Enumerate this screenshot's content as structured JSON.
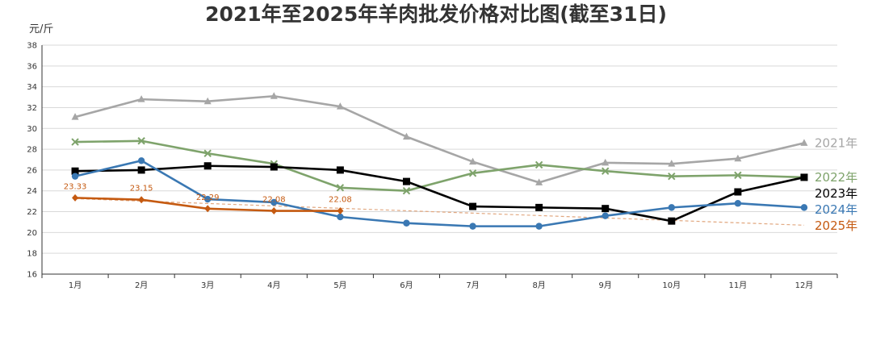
{
  "chart_data": {
    "type": "line",
    "title": "2021年至2025年羊肉批发价格对比图(截至31日)",
    "y_unit": "元/斤",
    "ylim": [
      16,
      38
    ],
    "y_ticks": [
      "16",
      "18",
      "20",
      "22",
      "24",
      "26",
      "28",
      "30",
      "32",
      "34",
      "36",
      "38"
    ],
    "categories": [
      "1月",
      "2月",
      "3月",
      "4月",
      "5月",
      "6月",
      "7月",
      "8月",
      "9月",
      "10月",
      "11月",
      "12月"
    ],
    "grid": "horizontal",
    "legend_position": "right-end-labels",
    "series": [
      {
        "name": "2021年",
        "color": "#a6a6a6",
        "marker": "triangle",
        "values": [
          31.1,
          32.8,
          32.6,
          33.1,
          32.1,
          29.2,
          26.8,
          24.8,
          26.7,
          26.6,
          27.1,
          28.6
        ]
      },
      {
        "name": "2022年",
        "color": "#7ea36b",
        "marker": "x",
        "values": [
          28.7,
          28.8,
          27.6,
          26.6,
          24.3,
          24.0,
          25.7,
          26.5,
          25.9,
          25.4,
          25.5,
          25.3
        ]
      },
      {
        "name": "2023年",
        "color": "#000000",
        "marker": "square",
        "values": [
          25.9,
          26.0,
          26.4,
          26.3,
          26.0,
          24.9,
          22.5,
          22.4,
          22.3,
          21.1,
          23.9,
          25.3
        ]
      },
      {
        "name": "2024年",
        "color": "#3a78b3",
        "marker": "circle",
        "values": [
          25.4,
          26.9,
          23.2,
          22.9,
          21.5,
          20.9,
          20.6,
          20.6,
          21.6,
          22.4,
          22.8,
          22.4
        ]
      },
      {
        "name": "2025年",
        "color": "#c55a11",
        "marker": "diamond",
        "values": [
          23.33,
          23.15,
          22.29,
          22.08,
          22.08,
          null,
          null,
          null,
          null,
          null,
          null,
          null
        ],
        "data_labels": [
          "23.33",
          "23.15",
          "22.29",
          "22.08",
          "22.08"
        ],
        "trendline": {
          "style": "dashed",
          "color": "#e1a77f",
          "from": [
            23.25,
            1
          ],
          "to": [
            20.7,
            12
          ]
        }
      }
    ]
  }
}
